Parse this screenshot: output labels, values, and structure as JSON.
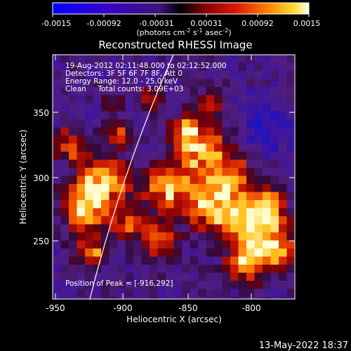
{
  "colorbar": {
    "ticks": [
      "-0.0015",
      "-0.00092",
      "-0.00031",
      "0.00031",
      "0.00092",
      "0.0015"
    ],
    "units_prefix": "(photons cm",
    "units_sup1": "-2",
    "units_mid1": " s",
    "units_sup2": "-1",
    "units_mid2": " asec",
    "units_sup3": "-2",
    "units_suffix": ")"
  },
  "plot": {
    "title": "Reconstructed RHESSI Image",
    "xlabel": "Heliocentric X (arcsec)",
    "ylabel": "Heliocentric Y (arcsec)",
    "xticks": [
      "-950",
      "-900",
      "-850",
      "-800"
    ],
    "yticks": [
      "350",
      "300",
      "250"
    ],
    "xlim": [
      -958,
      -832
    ],
    "ylim": [
      204,
      394
    ]
  },
  "annotations": {
    "line1": "19-Aug-2012 02:11:48.000 to 02:12:52.000",
    "line2": "Detectors: 3F 5F 6F 7F 8F, Att 0",
    "line3": "Energy Range: 12.0 - 25.0 keV",
    "line4": "Clean     Total counts: 3.09E+03",
    "peak": "Position of Peak = [-916,292]"
  },
  "footer": {
    "timestamp": "13-May-2022 18:37"
  }
}
